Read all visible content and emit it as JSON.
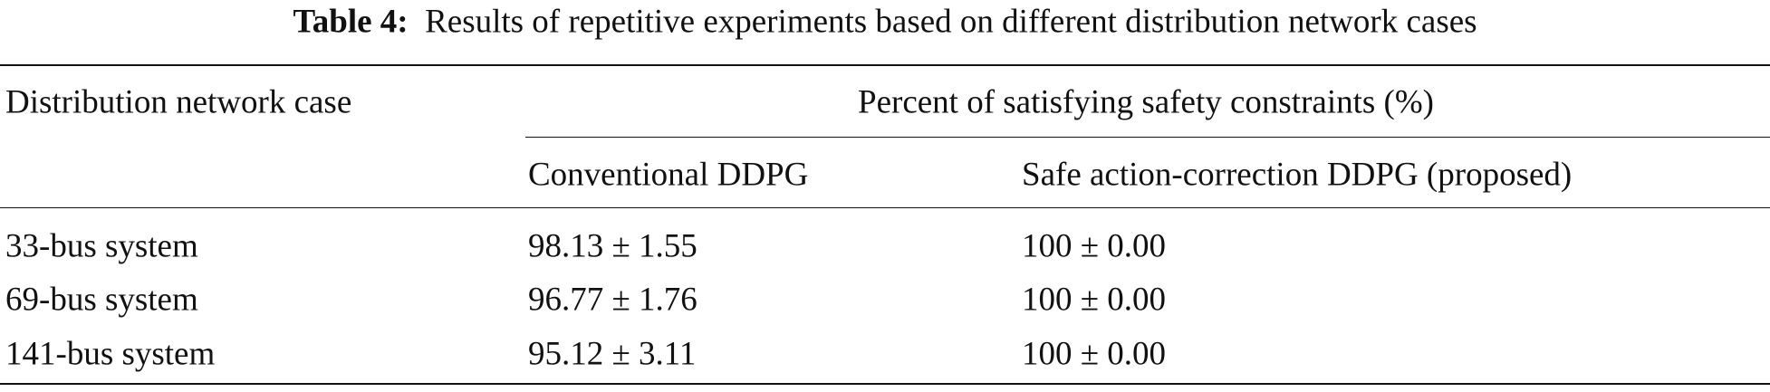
{
  "caption": {
    "label": "Table 4:",
    "text": "Results of repetitive experiments based on different distribution network cases"
  },
  "table": {
    "header": {
      "row_label": "Distribution network case",
      "group": "Percent of satisfying safety constraints (%)",
      "columns": [
        "Conventional DDPG",
        "Safe action-correction DDPG (proposed)"
      ]
    },
    "rows": [
      [
        "33-bus system",
        "98.13 ± 1.55",
        "100 ± 0.00"
      ],
      [
        "69-bus system",
        "96.77 ± 1.76",
        "100 ± 0.00"
      ],
      [
        "141-bus system",
        "95.12 ± 3.11",
        "100 ± 0.00"
      ]
    ]
  }
}
